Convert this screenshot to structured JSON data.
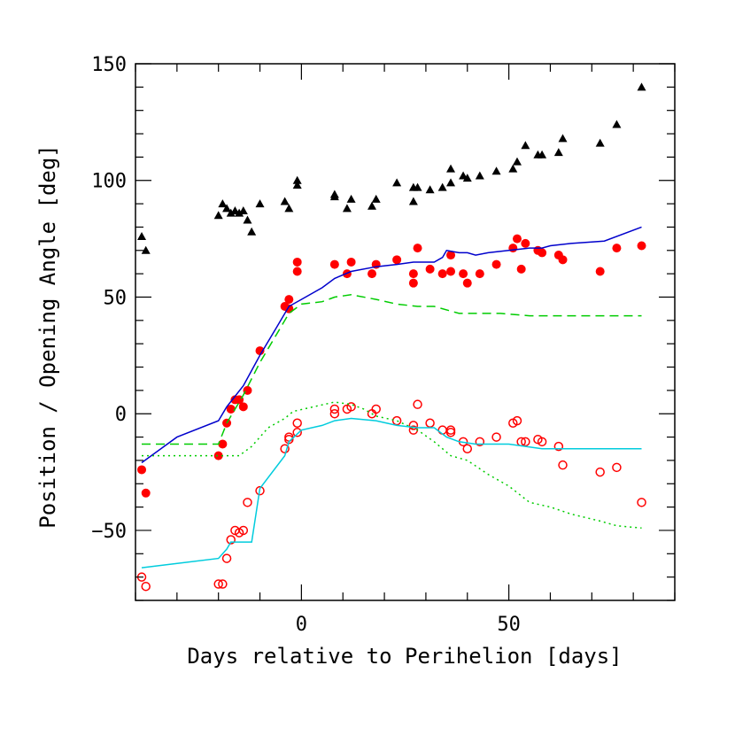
{
  "chart_data": {
    "type": "scatter",
    "xlabel": "Days relative to Perihelion [days]",
    "ylabel": "Position / Opening Angle [deg]",
    "xlim": [
      -40,
      90
    ],
    "ylim": [
      -80,
      150
    ],
    "x_ticks": [
      0,
      50
    ],
    "y_ticks": [
      -50,
      0,
      50,
      100,
      150
    ],
    "grid": false,
    "legend": "none",
    "series": [
      {
        "marker": "filled-triangle",
        "color": "#000000",
        "points": [
          [
            -38.5,
            76
          ],
          [
            -37.5,
            70
          ],
          [
            -20,
            85
          ],
          [
            -19,
            90
          ],
          [
            -18,
            88
          ],
          [
            -17,
            86
          ],
          [
            -16,
            87
          ],
          [
            -15,
            86
          ],
          [
            -14,
            87
          ],
          [
            -13,
            83
          ],
          [
            -12,
            78
          ],
          [
            -10,
            90
          ],
          [
            -4,
            91
          ],
          [
            -3,
            88
          ],
          [
            -1,
            100
          ],
          [
            -1,
            98
          ],
          [
            8,
            94
          ],
          [
            8,
            93
          ],
          [
            11,
            88
          ],
          [
            12,
            92
          ],
          [
            17,
            89
          ],
          [
            18,
            92
          ],
          [
            23,
            99
          ],
          [
            27,
            91
          ],
          [
            27,
            97
          ],
          [
            28,
            97
          ],
          [
            31,
            96
          ],
          [
            34,
            97
          ],
          [
            36,
            99
          ],
          [
            36,
            105
          ],
          [
            39,
            102
          ],
          [
            40,
            101
          ],
          [
            43,
            102
          ],
          [
            47,
            104
          ],
          [
            51,
            105
          ],
          [
            52,
            108
          ],
          [
            54,
            115
          ],
          [
            57,
            111
          ],
          [
            58,
            111
          ],
          [
            62,
            112
          ],
          [
            63,
            118
          ],
          [
            72,
            116
          ],
          [
            76,
            124
          ],
          [
            82,
            140
          ]
        ]
      },
      {
        "marker": "filled-circle",
        "color": "#ff0000",
        "points": [
          [
            -38.5,
            -24
          ],
          [
            -37.5,
            -34
          ],
          [
            -20,
            -18
          ],
          [
            -19,
            -13
          ],
          [
            -18,
            -4
          ],
          [
            -17,
            2
          ],
          [
            -16,
            6
          ],
          [
            -15,
            6
          ],
          [
            -14,
            3
          ],
          [
            -13,
            10
          ],
          [
            -10,
            27
          ],
          [
            -4,
            46
          ],
          [
            -3,
            49
          ],
          [
            -3,
            45
          ],
          [
            -1,
            65
          ],
          [
            -1,
            61
          ],
          [
            8,
            64
          ],
          [
            11,
            60
          ],
          [
            12,
            65
          ],
          [
            17,
            60
          ],
          [
            18,
            64
          ],
          [
            23,
            66
          ],
          [
            27,
            60
          ],
          [
            27,
            56
          ],
          [
            28,
            71
          ],
          [
            31,
            62
          ],
          [
            34,
            60
          ],
          [
            36,
            61
          ],
          [
            36,
            68
          ],
          [
            39,
            60
          ],
          [
            40,
            56
          ],
          [
            43,
            60
          ],
          [
            47,
            64
          ],
          [
            51,
            71
          ],
          [
            52,
            75
          ],
          [
            53,
            62
          ],
          [
            54,
            73
          ],
          [
            57,
            70
          ],
          [
            58,
            69
          ],
          [
            62,
            68
          ],
          [
            63,
            66
          ],
          [
            72,
            61
          ],
          [
            76,
            71
          ],
          [
            82,
            72
          ]
        ]
      },
      {
        "marker": "open-circle",
        "color": "#ff0000",
        "points": [
          [
            -38.5,
            -70
          ],
          [
            -37.5,
            -74
          ],
          [
            -20,
            -73
          ],
          [
            -19,
            -73
          ],
          [
            -18,
            -62
          ],
          [
            -17,
            -54
          ],
          [
            -16,
            -50
          ],
          [
            -15,
            -51
          ],
          [
            -14,
            -50
          ],
          [
            -13,
            -38
          ],
          [
            -10,
            -33
          ],
          [
            -4,
            -15
          ],
          [
            -3,
            -11
          ],
          [
            -3,
            -10
          ],
          [
            -1,
            -4
          ],
          [
            -1,
            -8
          ],
          [
            8,
            2
          ],
          [
            8,
            0
          ],
          [
            11,
            2
          ],
          [
            12,
            3
          ],
          [
            17,
            0
          ],
          [
            18,
            2
          ],
          [
            23,
            -3
          ],
          [
            27,
            -5
          ],
          [
            27,
            -7
          ],
          [
            28,
            4
          ],
          [
            31,
            -4
          ],
          [
            34,
            -7
          ],
          [
            36,
            -8
          ],
          [
            36,
            -7
          ],
          [
            39,
            -12
          ],
          [
            40,
            -15
          ],
          [
            43,
            -12
          ],
          [
            47,
            -10
          ],
          [
            51,
            -4
          ],
          [
            52,
            -3
          ],
          [
            53,
            -12
          ],
          [
            54,
            -12
          ],
          [
            57,
            -11
          ],
          [
            58,
            -12
          ],
          [
            62,
            -14
          ],
          [
            63,
            -22
          ],
          [
            72,
            -25
          ],
          [
            76,
            -23
          ],
          [
            82,
            -38
          ]
        ]
      },
      {
        "line": "solid",
        "color": "#0000cc",
        "points": [
          [
            -38.5,
            -21
          ],
          [
            -30,
            -10
          ],
          [
            -20,
            -3
          ],
          [
            -18,
            3
          ],
          [
            -14,
            12
          ],
          [
            -10,
            25
          ],
          [
            -6,
            37
          ],
          [
            -3,
            46
          ],
          [
            0,
            49
          ],
          [
            5,
            54
          ],
          [
            8,
            58
          ],
          [
            12,
            61
          ],
          [
            18,
            63
          ],
          [
            23,
            64
          ],
          [
            27,
            65
          ],
          [
            32,
            65
          ],
          [
            34,
            67
          ],
          [
            35,
            70
          ],
          [
            38,
            69
          ],
          [
            40,
            69
          ],
          [
            42,
            68
          ],
          [
            45,
            69
          ],
          [
            50,
            70
          ],
          [
            55,
            71
          ],
          [
            58,
            71
          ],
          [
            60,
            72
          ],
          [
            65,
            73
          ],
          [
            73,
            74
          ],
          [
            82,
            80
          ]
        ]
      },
      {
        "line": "dashed",
        "color": "#00cc00",
        "points": [
          [
            -38.5,
            -13
          ],
          [
            -20,
            -13
          ],
          [
            -18,
            -4
          ],
          [
            -14,
            8
          ],
          [
            -10,
            22
          ],
          [
            -6,
            34
          ],
          [
            -3,
            43
          ],
          [
            0,
            47
          ],
          [
            5,
            48
          ],
          [
            8,
            50
          ],
          [
            12,
            51
          ],
          [
            18,
            49
          ],
          [
            23,
            47
          ],
          [
            28,
            46
          ],
          [
            32,
            46
          ],
          [
            38,
            43
          ],
          [
            42,
            43
          ],
          [
            48,
            43
          ],
          [
            55,
            42
          ],
          [
            60,
            42
          ],
          [
            65,
            42
          ],
          [
            72,
            42
          ],
          [
            82,
            42
          ]
        ]
      },
      {
        "line": "dotted",
        "color": "#00cc00",
        "points": [
          [
            -38.5,
            -18
          ],
          [
            -20,
            -18
          ],
          [
            -15,
            -18
          ],
          [
            -12,
            -14
          ],
          [
            -8,
            -6
          ],
          [
            -4,
            -2
          ],
          [
            -2,
            1
          ],
          [
            3,
            3
          ],
          [
            8,
            5
          ],
          [
            12,
            4
          ],
          [
            15,
            2
          ],
          [
            18,
            -1
          ],
          [
            23,
            -3
          ],
          [
            28,
            -7
          ],
          [
            32,
            -12
          ],
          [
            36,
            -18
          ],
          [
            40,
            -20
          ],
          [
            45,
            -26
          ],
          [
            50,
            -31
          ],
          [
            55,
            -38
          ],
          [
            60,
            -40
          ],
          [
            65,
            -43
          ],
          [
            72,
            -46
          ],
          [
            76,
            -48
          ],
          [
            82,
            -49
          ]
        ]
      },
      {
        "line": "solid",
        "color": "#00ccdd",
        "points": [
          [
            -38.5,
            -66
          ],
          [
            -20,
            -62
          ],
          [
            -18,
            -58
          ],
          [
            -17,
            -55
          ],
          [
            -14,
            -55
          ],
          [
            -12,
            -55
          ],
          [
            -10,
            -32
          ],
          [
            -4,
            -18
          ],
          [
            -3,
            -12
          ],
          [
            0,
            -7
          ],
          [
            5,
            -5
          ],
          [
            8,
            -3
          ],
          [
            12,
            -2
          ],
          [
            18,
            -3
          ],
          [
            23,
            -5
          ],
          [
            28,
            -6
          ],
          [
            32,
            -6
          ],
          [
            35,
            -10
          ],
          [
            38,
            -12
          ],
          [
            42,
            -13
          ],
          [
            50,
            -13
          ],
          [
            58,
            -15
          ],
          [
            62,
            -15
          ],
          [
            72,
            -15
          ],
          [
            82,
            -15
          ]
        ]
      }
    ]
  }
}
